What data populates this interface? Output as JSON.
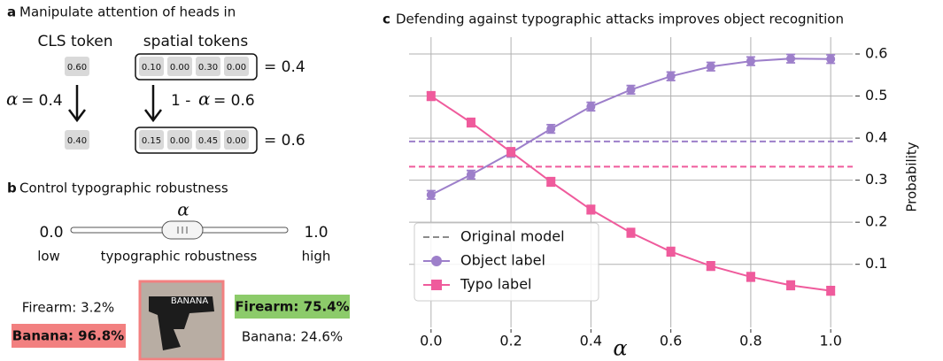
{
  "panel_a": {
    "letter": "a",
    "title": "Manipulate attention of heads in",
    "cls_label": "CLS token",
    "spatial_label": "spatial tokens",
    "alpha": "α",
    "cls_before": "0.60",
    "spatial_before": [
      "0.10",
      "0.00",
      "0.30",
      "0.00"
    ],
    "sum_before": "= 0.4",
    "left_eq": "= 0.4",
    "right_prefix": "1 - ",
    "right_eq": "= 0.6",
    "cls_after": "0.40",
    "spatial_after": [
      "0.15",
      "0.00",
      "0.45",
      "0.00"
    ],
    "sum_after": "= 0.6"
  },
  "panel_b": {
    "letter": "b",
    "title": "Control typographic robustness",
    "alpha": "α",
    "slider_min": "0.0",
    "slider_max": "1.0",
    "low": "low",
    "middle": "typographic robustness",
    "high": "high",
    "image_text": "BANANA",
    "left_firearm": "Firearm: 3.2%",
    "left_banana": "Banana: 96.8%",
    "right_firearm": "Firearm: 75.4%",
    "right_banana": "Banana: 24.6%"
  },
  "chart_data": {
    "type": "line",
    "letter": "c",
    "title": "Defending against typographic attacks improves object recognition",
    "xlabel": "α",
    "ylabel": "Probability",
    "x": [
      0.0,
      0.1,
      0.2,
      0.3,
      0.4,
      0.5,
      0.6,
      0.7,
      0.8,
      0.9,
      1.0
    ],
    "baseline_label": "Original model",
    "baseline_color": "#8c8c8c",
    "series": [
      {
        "name": "Object label",
        "color": "#9d7fca",
        "marker": "circle",
        "baseline": 0.392,
        "values": [
          0.265,
          0.313,
          0.365,
          0.422,
          0.475,
          0.515,
          0.547,
          0.57,
          0.583,
          0.589,
          0.588
        ],
        "errors": [
          0.01,
          0.01,
          0.01,
          0.01,
          0.01,
          0.01,
          0.01,
          0.01,
          0.01,
          0.01,
          0.01
        ]
      },
      {
        "name": "Typo label",
        "color": "#ef5b9c",
        "marker": "square",
        "baseline": 0.332,
        "values": [
          0.5,
          0.437,
          0.367,
          0.296,
          0.23,
          0.175,
          0.13,
          0.096,
          0.07,
          0.05,
          0.037
        ],
        "errors": [
          0.01,
          0.01,
          0.01,
          0.01,
          0.01,
          0.01,
          0.01,
          0.01,
          0.01,
          0.01,
          0.01
        ]
      }
    ],
    "xlim": [
      -0.055,
      1.055
    ],
    "ylim": [
      -0.05,
      0.64
    ],
    "xticks": [
      {
        "value": 0,
        "label": "0.0"
      },
      0.2,
      0.4,
      0.6,
      0.8,
      {
        "value": 1,
        "label": "1.0"
      }
    ],
    "yticks": [
      0.1,
      0.2,
      0.3,
      0.4,
      0.5,
      0.6
    ],
    "grid": true,
    "legend": "lower left"
  }
}
